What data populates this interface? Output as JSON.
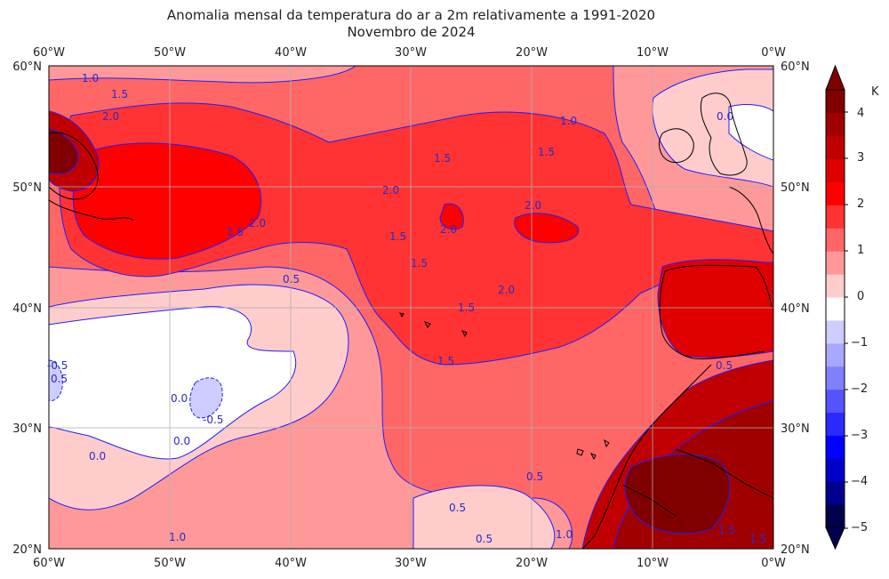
{
  "title": "Anomalia mensal da temperatura do ar a 2m relativamente a 1991-2020",
  "subtitle": "Novembro de 2024",
  "map": {
    "lon_labels": [
      "60°W",
      "50°W",
      "40°W",
      "30°W",
      "20°W",
      "10°W",
      "0°W"
    ],
    "lat_labels": [
      "60°N",
      "50°N",
      "40°N",
      "30°N",
      "20°N"
    ],
    "contour_labels": [
      "1.0",
      "1.5",
      "2.0",
      "1.5",
      "2.0",
      "1.5",
      "2.0",
      "1.5",
      "2.0",
      "1.5",
      "2.0",
      "1.5",
      "1.5",
      "2.0",
      "1.5",
      "0.5",
      "0.5",
      "0.0",
      "0.0",
      "0.0",
      "-0.5",
      "-0.5",
      "0.5",
      "0.5",
      "0.5",
      "1.0",
      "1.5",
      "1.5",
      "1.0",
      "0.0",
      "0.5",
      "1.0"
    ]
  },
  "colorbar": {
    "unit": "K",
    "tick_labels": [
      "4",
      "3",
      "2",
      "1",
      "0",
      "−1",
      "−2",
      "−3",
      "−4",
      "−5"
    ],
    "levels": [
      -5,
      -4.5,
      -4,
      -3.5,
      -3,
      -2.5,
      -2,
      -1.5,
      -1,
      -0.5,
      0,
      0.5,
      1,
      1.5,
      2,
      2.5,
      3,
      3.5,
      4,
      4.5
    ],
    "colors": [
      "#00004c",
      "#00008c",
      "#0000c8",
      "#0000ff",
      "#2a2aff",
      "#5555ff",
      "#8080ff",
      "#a8a8ff",
      "#cdcdff",
      "#ffffff",
      "#ffcccc",
      "#ff9999",
      "#ff6666",
      "#ff3333",
      "#ff0000",
      "#e00000",
      "#c00000",
      "#a00000",
      "#800000"
    ]
  },
  "colors": {
    "anom_0_05": "#ffcccc",
    "anom_05_1": "#ff9999",
    "anom_1_15": "#ff6666",
    "anom_15_2": "#ff3333",
    "anom_2_25": "#ff0000",
    "anom_25_3": "#e00000",
    "anom_3_35": "#c00000",
    "anom_35_4": "#a00000",
    "anom_gt4": "#800000",
    "anom_neg": "#cdcdff",
    "contour": "#1f1fff",
    "land_line": "#000000"
  }
}
